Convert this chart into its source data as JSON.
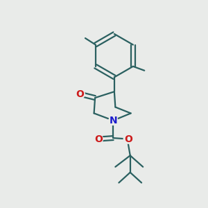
{
  "bg_color": "#e9ebe9",
  "bond_color": "#2a6060",
  "bond_width": 1.6,
  "N_color": "#1a1acc",
  "O_color": "#cc1a1a",
  "font_size_N": 10,
  "font_size_O": 10,
  "fig_size": [
    3.0,
    3.0
  ],
  "dpi": 100,
  "xlim": [
    0,
    10
  ],
  "ylim": [
    0,
    10
  ]
}
